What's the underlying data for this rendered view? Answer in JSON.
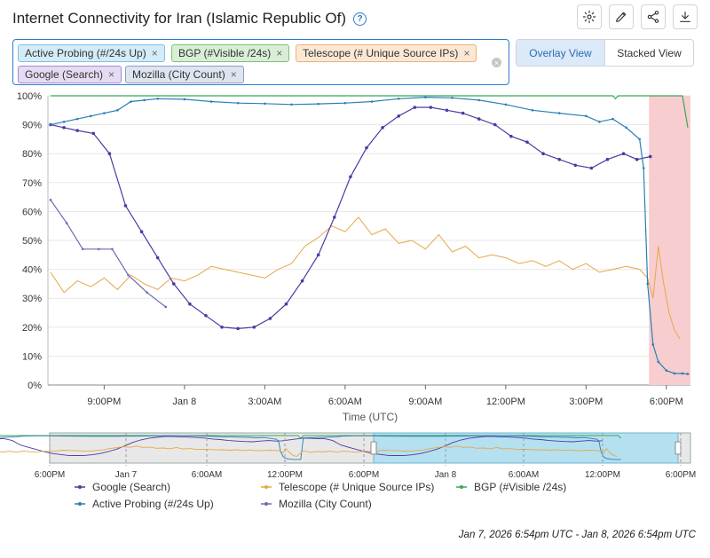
{
  "header": {
    "title": "Internet Connectivity for Iran (Islamic Republic Of)",
    "help_icon": "question-circle-icon",
    "tools": [
      "gear-icon",
      "pencil-icon",
      "share-icon",
      "download-icon"
    ]
  },
  "tags": [
    {
      "label": "Active Probing (#/24s Up)",
      "bg": "#d4ecf7",
      "border": "#7cc0e0"
    },
    {
      "label": "BGP (#Visible /24s)",
      "bg": "#d8efd6",
      "border": "#7dc07a"
    },
    {
      "label": "Telescope (# Unique Source IPs)",
      "bg": "#fbe8d4",
      "border": "#e8b27a"
    },
    {
      "label": "Google (Search)",
      "bg": "#e5dcf3",
      "border": "#a48ad6"
    },
    {
      "label": "Mozilla (City Count)",
      "bg": "#dfe5f0",
      "border": "#8a9cc4"
    }
  ],
  "view": {
    "overlay": "Overlay View",
    "stacked": "Stacked View"
  },
  "date_range": "Jan 7, 2026 6:54pm UTC - Jan 8, 2026 6:54pm UTC",
  "colors": {
    "google": "#4b3aa3",
    "telescope": "#e5a847",
    "bgp": "#3aa757",
    "active": "#2b7fb5",
    "mozilla": "#6f6ab3",
    "outage": "#f8cdd0"
  },
  "chart_data": {
    "type": "line",
    "xlabel": "Time (UTC)",
    "ylabel": "",
    "ylim": [
      0,
      100
    ],
    "y_ticks": [
      "0%",
      "10%",
      "20%",
      "30%",
      "40%",
      "50%",
      "60%",
      "70%",
      "80%",
      "90%",
      "100%"
    ],
    "x_ticks": [
      "9:00PM",
      "Jan 8",
      "3:00AM",
      "6:00AM",
      "9:00AM",
      "12:00PM",
      "3:00PM",
      "6:00PM"
    ],
    "x_tick_hours": [
      21,
      24,
      27,
      30,
      33,
      36,
      39,
      42
    ],
    "x_range_hours": [
      18.9,
      42.9
    ],
    "highlight_hours": [
      41.35,
      42.9
    ],
    "legend": [
      "Google (Search)",
      "Telescope (# Unique Source IPs)",
      "BGP (#Visible /24s)",
      "Active Probing (#/24s Up)",
      "Mozilla (City Count)"
    ],
    "legend_position": "bottom",
    "brush_ticks": [
      "6:00PM",
      "Jan 7",
      "6:00AM",
      "12:00PM",
      "6:00PM",
      "Jan 8",
      "6:00AM",
      "12:00PM",
      "6:00PM"
    ],
    "series": [
      {
        "name": "Google (Search)",
        "key": "google",
        "x": [
          19.0,
          19.5,
          20.0,
          20.6,
          21.2,
          21.8,
          22.4,
          23.0,
          23.6,
          24.2,
          24.8,
          25.4,
          26.0,
          26.6,
          27.2,
          27.8,
          28.4,
          29.0,
          29.6,
          30.2,
          30.8,
          31.4,
          32.0,
          32.6,
          33.2,
          33.8,
          34.4,
          35.0,
          35.6,
          36.2,
          36.8,
          37.4,
          38.0,
          38.6,
          39.2,
          39.8,
          40.4,
          40.9,
          41.4
        ],
        "y": [
          90,
          89,
          88,
          87,
          80,
          62,
          53,
          44,
          35,
          28,
          24,
          20,
          19.5,
          20,
          23,
          28,
          36,
          45,
          58,
          72,
          82,
          89,
          93,
          96,
          96,
          95,
          94,
          92,
          90,
          86,
          84,
          80,
          78,
          76,
          75,
          78,
          80,
          78,
          79
        ]
      },
      {
        "name": "Telescope (# Unique Source IPs)",
        "key": "telescope",
        "x": [
          19.0,
          19.5,
          20.0,
          20.5,
          21.0,
          21.5,
          22.0,
          22.5,
          23.0,
          23.5,
          24.0,
          24.5,
          25.0,
          25.5,
          26.0,
          26.5,
          27.0,
          27.5,
          28.0,
          28.5,
          29.0,
          29.5,
          30.0,
          30.5,
          31.0,
          31.5,
          32.0,
          32.5,
          33.0,
          33.5,
          34.0,
          34.5,
          35.0,
          35.5,
          36.0,
          36.5,
          37.0,
          37.5,
          38.0,
          38.5,
          39.0,
          39.5,
          40.0,
          40.5,
          41.0,
          41.3,
          41.5,
          41.7,
          41.9,
          42.1,
          42.3,
          42.5
        ],
        "y": [
          39,
          32,
          36,
          34,
          37,
          33,
          38,
          35,
          33,
          37,
          36,
          38,
          41,
          40,
          39,
          38,
          37,
          40,
          42,
          48,
          51,
          55,
          53,
          58,
          52,
          54,
          49,
          50,
          47,
          52,
          46,
          48,
          44,
          45,
          44,
          42,
          43,
          41,
          43,
          40,
          42,
          39,
          40,
          41,
          40,
          37,
          30,
          48,
          35,
          25,
          19,
          16
        ]
      },
      {
        "name": "BGP (#Visible /24s)",
        "key": "bgp",
        "x": [
          19.0,
          21.0,
          24.0,
          27.0,
          30.0,
          33.0,
          36.0,
          39.0,
          40.0,
          40.1,
          40.2,
          41.0,
          42.0,
          42.6,
          42.8
        ],
        "y": [
          100,
          100,
          100,
          100,
          100,
          100,
          100,
          100,
          100,
          99,
          100,
          100,
          100,
          100,
          89
        ]
      },
      {
        "name": "Active Probing (#/24s Up)",
        "key": "active",
        "x": [
          19.0,
          19.5,
          20.0,
          20.5,
          21.0,
          21.5,
          22.0,
          22.5,
          23.0,
          24.0,
          25.0,
          26.0,
          27.0,
          28.0,
          29.0,
          30.0,
          31.0,
          32.0,
          33.0,
          34.0,
          35.0,
          36.0,
          37.0,
          38.0,
          39.0,
          39.5,
          40.0,
          40.5,
          41.0,
          41.15,
          41.3,
          41.5,
          41.7,
          42.0,
          42.3,
          42.6,
          42.8
        ],
        "y": [
          90,
          91,
          92,
          93,
          94,
          95,
          98,
          98.5,
          99,
          98.8,
          98,
          97.5,
          97.3,
          97,
          97.2,
          97.5,
          98,
          99,
          99.5,
          99.3,
          98.5,
          97,
          95,
          94,
          93,
          91,
          92,
          89,
          85,
          75,
          35,
          14,
          8,
          5,
          4,
          4,
          3.8
        ]
      },
      {
        "name": "Mozilla (City Count)",
        "key": "mozilla",
        "x": [
          19.0,
          19.6,
          20.2,
          20.8,
          21.3,
          21.9,
          22.6,
          23.3
        ],
        "y": [
          64,
          56,
          47,
          47,
          47,
          38,
          32,
          27
        ]
      }
    ]
  }
}
